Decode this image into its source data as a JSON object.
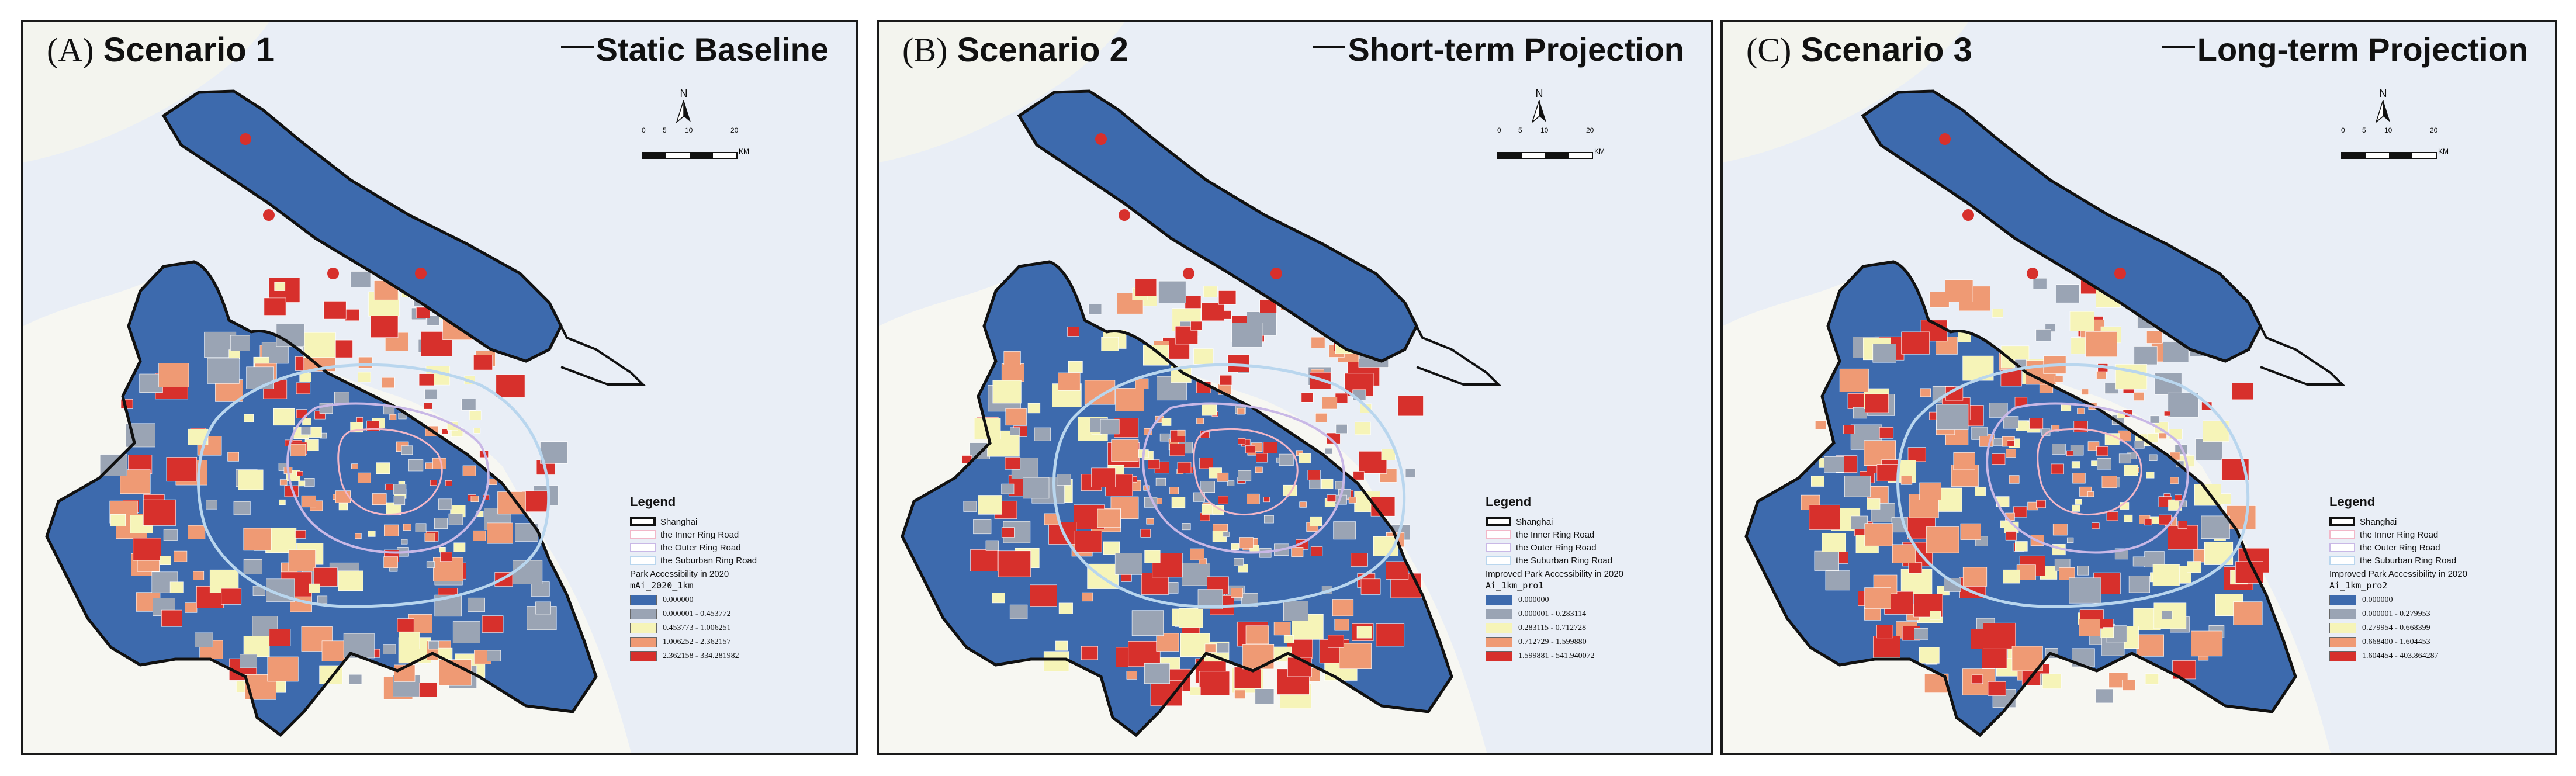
{
  "panels": [
    {
      "letter": "(A)",
      "scenario": "Scenario 1",
      "subtitle": "Static Baseline",
      "north_label": "N",
      "scale": {
        "ticks": [
          "0",
          "5",
          "10",
          "20"
        ],
        "unit": "KM"
      },
      "legend": {
        "heading": "Legend",
        "items": [
          "Shanghai",
          "the Inner Ring Road",
          "the Outer Ring Road",
          "the Suburban Ring Road"
        ],
        "subheading": "Park Accessibility in 2020",
        "field": "mAi_2020_1km",
        "classes": [
          "0.000000",
          "0.000001 - 0.453772",
          "0.453773 - 1.006251",
          "1.006252 - 2.362157",
          "2.362158 - 334.281982"
        ]
      }
    },
    {
      "letter": "(B)",
      "scenario": "Scenario 2",
      "subtitle": "Short-term Projection",
      "north_label": "N",
      "scale": {
        "ticks": [
          "0",
          "5",
          "10",
          "20"
        ],
        "unit": "KM"
      },
      "legend": {
        "heading": "Legend",
        "items": [
          "Shanghai",
          "the Inner Ring Road",
          "the Outer Ring Road",
          "the Suburban Ring Road"
        ],
        "subheading": "Improved Park Accessibility in 2020",
        "field": "Ai_1km_pro1",
        "classes": [
          "0.000000",
          "0.000001 - 0.283114",
          "0.283115 - 0.712728",
          "0.712729 - 1.599880",
          "1.599881 - 541.940072"
        ]
      }
    },
    {
      "letter": "(C)",
      "scenario": "Scenario 3",
      "subtitle": "Long-term Projection",
      "north_label": "N",
      "scale": {
        "ticks": [
          "0",
          "5",
          "10",
          "20"
        ],
        "unit": "KM"
      },
      "legend": {
        "heading": "Legend",
        "items": [
          "Shanghai",
          "the Inner Ring Road",
          "the Outer Ring Road",
          "the Suburban Ring Road"
        ],
        "subheading": "Improved Park Accessibility in 2020",
        "field": "Ai_1km_pro2",
        "classes": [
          "0.000000",
          "0.000001 - 0.279953",
          "0.279954 - 0.668399",
          "0.668400 - 1.604453",
          "1.604454 - 403.864287"
        ]
      }
    }
  ],
  "colors": {
    "class_colors": [
      "#3d6aad",
      "#9aa4b4",
      "#f6f4b8",
      "#ef9a74",
      "#d7302c"
    ],
    "boundary": "#111111",
    "inner_ring": "#f2b7c8",
    "outer_ring": "#c9b8e6",
    "suburban_ring": "#b9d6ee",
    "water": "#e9eef6",
    "land_bg": "#f7f7f2"
  }
}
